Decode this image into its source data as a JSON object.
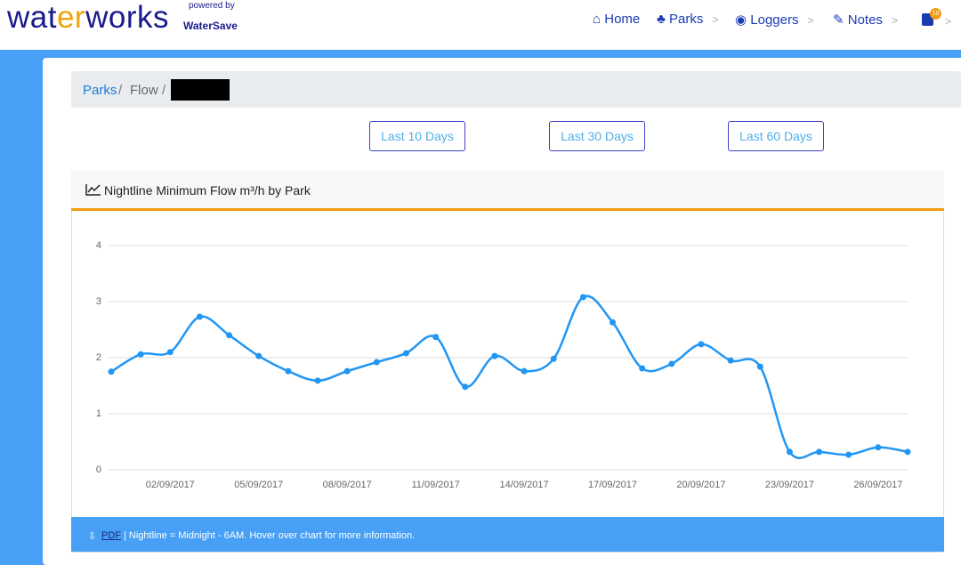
{
  "logo": {
    "start": "wat",
    "accent": "er",
    "end": "works",
    "powered": "powered by",
    "brand": "WaterSave"
  },
  "nav": [
    {
      "label": "Home"
    },
    {
      "label": "Parks"
    },
    {
      "label": "Loggers"
    },
    {
      "label": "Notes"
    }
  ],
  "notes_badge": "10",
  "breadcrumb": [
    "Parks",
    "Flow"
  ],
  "buttons": [
    "Last 10 Days",
    "Last 30 Days",
    "Last 60 Days"
  ],
  "card": {
    "title": "Nightline Minimum Flow m³/h by Park",
    "footer_link": "PDF",
    "footer_text": "| Nightline = Midnight - 6AM. Hover over chart for more information."
  },
  "chart_data": {
    "type": "line",
    "categories": [
      null,
      null,
      "02/09/2017",
      null,
      null,
      "05/09/2017",
      null,
      null,
      "08/09/2017",
      null,
      null,
      "11/09/2017",
      null,
      null,
      "14/09/2017",
      null,
      null,
      "17/09/2017",
      null,
      null,
      "20/09/2017",
      null,
      null,
      "23/09/2017",
      null,
      null,
      "26/09/2017",
      null
    ],
    "values": [
      1.75,
      2.06,
      2.1,
      2.73,
      2.4,
      2.03,
      1.76,
      1.59,
      1.76,
      1.92,
      2.08,
      2.37,
      1.48,
      2.03,
      1.76,
      1.98,
      3.08,
      2.63,
      1.81,
      1.89,
      2.24,
      1.95,
      1.84,
      0.32,
      0.32,
      0.27,
      0.4,
      0.32
    ],
    "color": "#2196f3",
    "ylim": [
      0,
      4
    ],
    "yticks": [
      0,
      1,
      2,
      3,
      4
    ],
    "grid": true
  }
}
